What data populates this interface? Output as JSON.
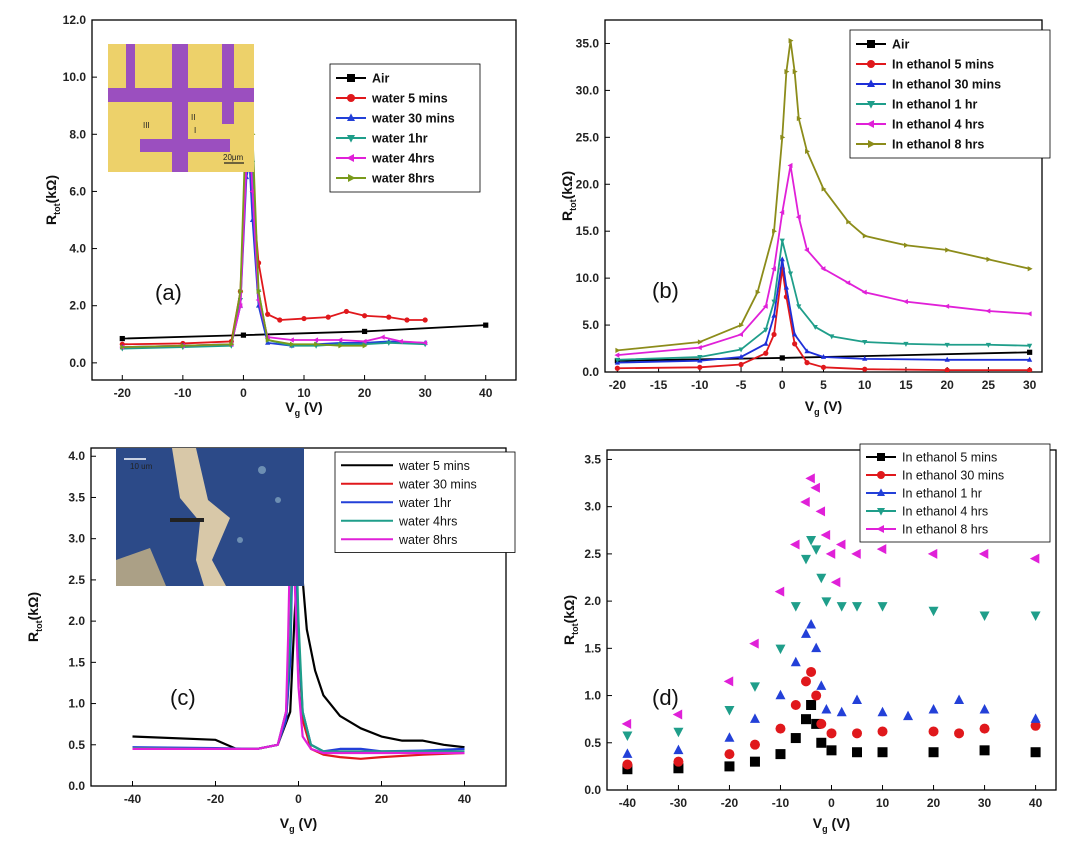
{
  "chart_data": [
    {
      "panel": "(a)",
      "type": "line",
      "xlabel": "V",
      "xlabel_sub": "g",
      "xlabel_unit": " (V)",
      "ylabel": "R",
      "ylabel_sub": "tot",
      "ylabel_unit": "(kΩ)",
      "xlim": [
        -25,
        45
      ],
      "ylim": [
        -0.6,
        12.0
      ],
      "xticks": [
        -20,
        -10,
        0,
        10,
        20,
        30,
        40
      ],
      "xtick_labels": [
        "-20",
        "-10",
        "0",
        "10",
        "20",
        "30",
        "40"
      ],
      "yticks": [
        0,
        2,
        4,
        6,
        8,
        10,
        12
      ],
      "ytick_labels": [
        "0.0",
        "2.0",
        "4.0",
        "6.0",
        "8.0",
        "10.0",
        "12.0"
      ],
      "legend_position": "top-right",
      "legend_bold": true,
      "inset": {
        "kind": "device-micrograph",
        "labels": [
          "II",
          "III",
          "I"
        ],
        "scale_text": "20μm"
      },
      "series": [
        {
          "name": "Air",
          "color": "#000000",
          "marker": "square",
          "x": [
            -20,
            0,
            20,
            40
          ],
          "y": [
            0.85,
            0.97,
            1.1,
            1.32
          ]
        },
        {
          "name": "water 5 mins",
          "color": "#e0181c",
          "marker": "circle",
          "x": [
            -20,
            -10,
            -2,
            -0.5,
            0.5,
            1,
            1.5,
            2.5,
            4,
            6,
            10,
            14,
            17,
            20,
            24,
            27,
            30
          ],
          "y": [
            0.65,
            0.68,
            0.75,
            2.5,
            7.5,
            8.2,
            6.0,
            3.5,
            1.7,
            1.5,
            1.55,
            1.6,
            1.8,
            1.65,
            1.6,
            1.5,
            1.5
          ]
        },
        {
          "name": "water 30 mins",
          "color": "#2340d8",
          "marker": "triangle-up",
          "x": [
            -20,
            -10,
            -2,
            -0.5,
            0.5,
            1,
            1.5,
            2.5,
            4,
            8,
            12,
            16,
            20,
            24,
            30
          ],
          "y": [
            0.55,
            0.6,
            0.65,
            2.0,
            6.5,
            7.0,
            5.0,
            2.0,
            0.7,
            0.6,
            0.65,
            0.7,
            0.7,
            0.75,
            0.7
          ]
        },
        {
          "name": "water 1hr",
          "color": "#1f9e8a",
          "marker": "triangle-down",
          "x": [
            -20,
            -10,
            -2,
            -0.5,
            0.5,
            1,
            1.5,
            2.5,
            4,
            8,
            12,
            16,
            20,
            24,
            30
          ],
          "y": [
            0.5,
            0.55,
            0.6,
            2.2,
            8.0,
            9.8,
            7.0,
            2.5,
            0.8,
            0.6,
            0.6,
            0.65,
            0.65,
            0.7,
            0.65
          ]
        },
        {
          "name": "water 4hrs",
          "color": "#e020d8",
          "marker": "triangle-left",
          "x": [
            -20,
            -10,
            -2,
            -0.5,
            0.5,
            1,
            1.5,
            2.5,
            4,
            8,
            12,
            16,
            20,
            23,
            26,
            30
          ],
          "y": [
            0.55,
            0.6,
            0.65,
            2.0,
            7.0,
            8.0,
            6.0,
            2.2,
            0.9,
            0.8,
            0.8,
            0.8,
            0.75,
            0.9,
            0.75,
            0.7
          ]
        },
        {
          "name": "water 8hrs",
          "color": "#7a9a1a",
          "marker": "triangle-right",
          "x": [
            -20,
            -10,
            -2,
            -0.5,
            0.5,
            1,
            1.5,
            2.5,
            4,
            8,
            12,
            16,
            20
          ],
          "y": [
            0.55,
            0.6,
            0.65,
            2.5,
            9.0,
            11.0,
            8.0,
            2.5,
            0.8,
            0.65,
            0.65,
            0.6,
            0.6
          ]
        }
      ]
    },
    {
      "panel": "(b)",
      "type": "line",
      "xlabel": "V",
      "xlabel_sub": "g",
      "xlabel_unit": " (V)",
      "ylabel": "R",
      "ylabel_sub": "tot",
      "ylabel_unit": "(kΩ)",
      "xlim": [
        -21.5,
        31.5
      ],
      "ylim": [
        0,
        37.5
      ],
      "xticks": [
        -20,
        -15,
        -10,
        -5,
        0,
        5,
        10,
        15,
        20,
        25,
        30
      ],
      "xtick_labels": [
        "-20",
        "-15",
        "-10",
        "-5",
        "0",
        "5",
        "10",
        "15",
        "20",
        "25",
        "30"
      ],
      "yticks": [
        0,
        5,
        10,
        15,
        20,
        25,
        30,
        35
      ],
      "ytick_labels": [
        "0.0",
        "5.0",
        "10.0",
        "15.0",
        "20.0",
        "25.0",
        "30.0",
        "35.0"
      ],
      "legend_position": "top-right",
      "legend_bold": true,
      "series": [
        {
          "name": "Air",
          "color": "#000000",
          "marker": "square",
          "x": [
            -20,
            0,
            30
          ],
          "y": [
            1.2,
            1.5,
            2.1
          ]
        },
        {
          "name": "In ethanol 5 mins",
          "color": "#e0181c",
          "marker": "circle",
          "x": [
            -20,
            -10,
            -5,
            -2,
            -1,
            0,
            0.5,
            1.5,
            3,
            5,
            10,
            20,
            30
          ],
          "y": [
            0.4,
            0.5,
            0.8,
            2.0,
            4.0,
            11.0,
            8.0,
            3.0,
            1.0,
            0.5,
            0.3,
            0.2,
            0.2
          ]
        },
        {
          "name": "In ethanol 30 mins",
          "color": "#1e2fd8",
          "marker": "triangle-up",
          "x": [
            -20,
            -10,
            -5,
            -2,
            -1,
            0,
            0.5,
            1.5,
            3,
            5,
            10,
            20,
            30
          ],
          "y": [
            1.0,
            1.2,
            1.6,
            3.0,
            6.0,
            12.0,
            9.0,
            4.0,
            2.2,
            1.6,
            1.4,
            1.3,
            1.3
          ]
        },
        {
          "name": "In ethanol 1 hr",
          "color": "#1f9e8a",
          "marker": "triangle-down",
          "x": [
            -20,
            -10,
            -5,
            -2,
            -1,
            0,
            1,
            2,
            4,
            6,
            10,
            15,
            20,
            25,
            30
          ],
          "y": [
            1.3,
            1.6,
            2.4,
            4.5,
            7.5,
            14.0,
            10.5,
            7.0,
            4.8,
            3.8,
            3.2,
            3.0,
            2.9,
            2.9,
            2.8
          ]
        },
        {
          "name": "In ethanol 4 hrs",
          "color": "#e020d8",
          "marker": "triangle-left",
          "x": [
            -20,
            -10,
            -5,
            -2,
            -1,
            0,
            1,
            2,
            3,
            5,
            8,
            10,
            15,
            20,
            25,
            30
          ],
          "y": [
            1.8,
            2.6,
            4.0,
            7.0,
            11.0,
            17.0,
            22.0,
            16.5,
            13.0,
            11.0,
            9.5,
            8.5,
            7.5,
            7.0,
            6.5,
            6.2
          ]
        },
        {
          "name": "In ethanol 8 hrs",
          "color": "#8c8c1a",
          "marker": "triangle-right",
          "x": [
            -20,
            -10,
            -5,
            -3,
            -1,
            0,
            0.5,
            1,
            1.5,
            2,
            3,
            5,
            8,
            10,
            15,
            20,
            25,
            30
          ],
          "y": [
            2.3,
            3.2,
            5.0,
            8.5,
            15.0,
            25.0,
            32.0,
            35.3,
            32.0,
            27.0,
            23.5,
            19.5,
            16.0,
            14.5,
            13.5,
            13.0,
            12.0,
            11.0
          ]
        }
      ]
    },
    {
      "panel": "(c)",
      "type": "line",
      "xlabel": "V",
      "xlabel_sub": "g",
      "xlabel_unit": " (V)",
      "ylabel": "R",
      "ylabel_sub": "tot",
      "ylabel_unit": "(kΩ)",
      "xlim": [
        -50,
        50
      ],
      "ylim": [
        0,
        4.1
      ],
      "xticks": [
        -40,
        -20,
        0,
        20,
        40
      ],
      "xtick_labels": [
        "-40",
        "-20",
        "0",
        "20",
        "40"
      ],
      "yticks": [
        0,
        0.5,
        1.0,
        1.5,
        2.0,
        2.5,
        3.0,
        3.5,
        4.0
      ],
      "ytick_labels": [
        "0.0",
        "0.5",
        "1.0",
        "1.5",
        "2.0",
        "2.5",
        "3.0",
        "3.5",
        "4.0"
      ],
      "legend_position": "top-right",
      "legend_bold": false,
      "inset": {
        "kind": "flake-micrograph",
        "scale_text": "10 um"
      },
      "series": [
        {
          "name": "water 5 mins",
          "color": "#000000",
          "x": [
            -40,
            -20,
            -15,
            -10,
            -5,
            -2,
            -1,
            0,
            0.5,
            1,
            2,
            4,
            6,
            10,
            15,
            20,
            25,
            30,
            35,
            40
          ],
          "y": [
            0.6,
            0.56,
            0.45,
            0.45,
            0.5,
            0.9,
            2.0,
            2.9,
            2.85,
            2.5,
            1.9,
            1.4,
            1.1,
            0.85,
            0.7,
            0.6,
            0.55,
            0.55,
            0.5,
            0.47
          ]
        },
        {
          "name": "water 30 mins",
          "color": "#e0181c",
          "x": [
            -40,
            -20,
            -10,
            -5,
            -3,
            -2,
            -1.5,
            -1,
            0,
            1,
            3,
            6,
            10,
            15,
            20,
            30,
            40
          ],
          "y": [
            0.45,
            0.45,
            0.45,
            0.5,
            0.8,
            1.6,
            2.8,
            3.3,
            1.8,
            0.8,
            0.45,
            0.38,
            0.35,
            0.33,
            0.35,
            0.38,
            0.4
          ]
        },
        {
          "name": "water 1hr",
          "color": "#2340d8",
          "x": [
            -40,
            -20,
            -10,
            -5,
            -3,
            -2,
            -1.5,
            -1,
            0,
            1,
            3,
            6,
            10,
            15,
            20,
            30,
            40
          ],
          "y": [
            0.47,
            0.46,
            0.45,
            0.5,
            0.8,
            1.5,
            2.7,
            3.4,
            1.8,
            0.9,
            0.5,
            0.42,
            0.45,
            0.45,
            0.42,
            0.43,
            0.45
          ]
        },
        {
          "name": "water 4hrs",
          "color": "#1f9e8a",
          "x": [
            -40,
            -20,
            -10,
            -5,
            -3,
            -2,
            -1.5,
            -1,
            0,
            1,
            3,
            6,
            10,
            20,
            30,
            40
          ],
          "y": [
            0.46,
            0.45,
            0.45,
            0.5,
            0.9,
            1.8,
            3.0,
            3.8,
            2.0,
            0.9,
            0.5,
            0.42,
            0.42,
            0.42,
            0.42,
            0.42
          ]
        },
        {
          "name": "water 8hrs",
          "color": "#e020d8",
          "x": [
            -40,
            -20,
            -10,
            -5,
            -3,
            -2.5,
            -2,
            -1.5,
            -1,
            0,
            1,
            3,
            6,
            10,
            20,
            30,
            40
          ],
          "y": [
            0.45,
            0.45,
            0.45,
            0.5,
            0.9,
            1.8,
            3.0,
            3.6,
            2.6,
            1.2,
            0.6,
            0.45,
            0.4,
            0.4,
            0.4,
            0.4,
            0.4
          ]
        }
      ]
    },
    {
      "panel": "(d)",
      "type": "scatter",
      "xlabel": "V",
      "xlabel_sub": "g",
      "xlabel_unit": " (V)",
      "ylabel": "R",
      "ylabel_sub": "tot",
      "ylabel_unit": "(kΩ)",
      "xlim": [
        -44,
        44
      ],
      "ylim": [
        0,
        3.6
      ],
      "xticks": [
        -40,
        -30,
        -20,
        -10,
        0,
        10,
        20,
        30,
        40
      ],
      "xtick_labels": [
        "-40",
        "-30",
        "-20",
        "-10",
        "0",
        "10",
        "20",
        "30",
        "40"
      ],
      "yticks": [
        0,
        0.5,
        1.0,
        1.5,
        2.0,
        2.5,
        3.0,
        3.5
      ],
      "ytick_labels": [
        "0.0",
        "0.5",
        "1.0",
        "1.5",
        "2.0",
        "2.5",
        "3.0",
        "3.5"
      ],
      "legend_position": "top-right",
      "legend_bold": false,
      "series": [
        {
          "name": "In ethanol 5 mins",
          "color": "#000000",
          "marker": "square",
          "x": [
            -40,
            -30,
            -20,
            -15,
            -10,
            -7,
            -5,
            -4,
            -3,
            -2,
            0,
            5,
            10,
            20,
            30,
            40
          ],
          "y": [
            0.22,
            0.23,
            0.25,
            0.3,
            0.38,
            0.55,
            0.75,
            0.9,
            0.7,
            0.5,
            0.42,
            0.4,
            0.4,
            0.4,
            0.42,
            0.4
          ]
        },
        {
          "name": "In ethanol 30 mins",
          "color": "#e0181c",
          "marker": "circle",
          "x": [
            -40,
            -30,
            -20,
            -15,
            -10,
            -7,
            -5,
            -4,
            -3,
            -2,
            0,
            5,
            10,
            20,
            25,
            30,
            40
          ],
          "y": [
            0.27,
            0.3,
            0.38,
            0.48,
            0.65,
            0.9,
            1.15,
            1.25,
            1.0,
            0.7,
            0.6,
            0.6,
            0.62,
            0.62,
            0.6,
            0.65,
            0.68
          ]
        },
        {
          "name": "In ethanol 1 hr",
          "color": "#2340d8",
          "marker": "triangle-up",
          "x": [
            -40,
            -30,
            -20,
            -15,
            -10,
            -7,
            -5,
            -4,
            -3,
            -2,
            -1,
            2,
            5,
            10,
            15,
            20,
            25,
            30,
            40
          ],
          "y": [
            0.38,
            0.42,
            0.55,
            0.75,
            1.0,
            1.35,
            1.65,
            1.75,
            1.5,
            1.1,
            0.85,
            0.82,
            0.95,
            0.82,
            0.78,
            0.85,
            0.95,
            0.85,
            0.75
          ]
        },
        {
          "name": "In ethanol 4 hrs",
          "color": "#1f9e8a",
          "marker": "triangle-down",
          "x": [
            -40,
            -30,
            -20,
            -15,
            -10,
            -7,
            -5,
            -4,
            -3,
            -2,
            -1,
            2,
            5,
            10,
            20,
            30,
            40
          ],
          "y": [
            0.58,
            0.62,
            0.85,
            1.1,
            1.5,
            1.95,
            2.45,
            2.65,
            2.55,
            2.25,
            2.0,
            1.95,
            1.95,
            1.95,
            1.9,
            1.85,
            1.85
          ]
        },
        {
          "name": "In ethanol 8 hrs",
          "color": "#e020d8",
          "marker": "triangle-left",
          "x": [
            -40,
            -30,
            -20,
            -15,
            -10,
            -7,
            -5,
            -4,
            -3,
            -2,
            -1,
            0,
            1,
            2,
            5,
            10,
            20,
            30,
            40
          ],
          "y": [
            0.7,
            0.8,
            1.15,
            1.55,
            2.1,
            2.6,
            3.05,
            3.3,
            3.2,
            2.95,
            2.7,
            2.5,
            2.2,
            2.6,
            2.5,
            2.55,
            2.5,
            2.5,
            2.45
          ]
        }
      ]
    }
  ]
}
